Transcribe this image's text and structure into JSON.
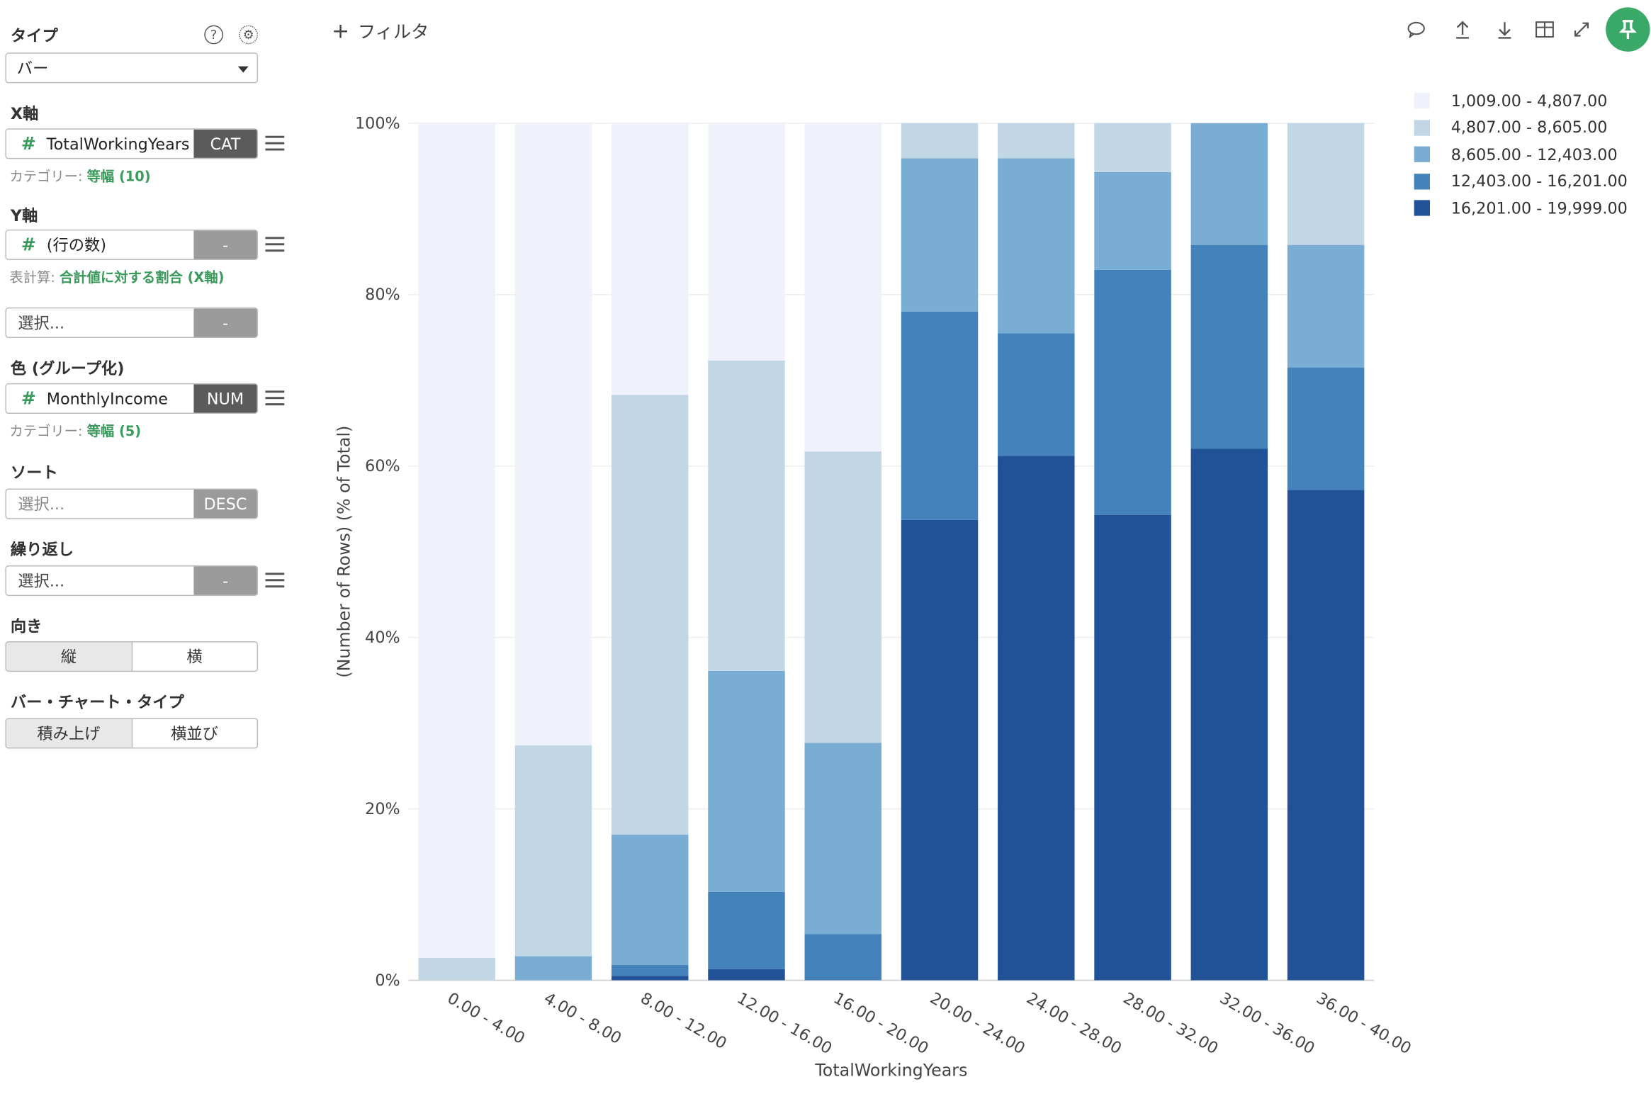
{
  "sidebar": {
    "type_label": "タイプ",
    "type_value": "バー",
    "x_label": "X軸",
    "x_field": "TotalWorkingYears",
    "x_tag": "CAT",
    "x_note_prefix": "カテゴリー: ",
    "x_note_value": "等幅 (10)",
    "y_label": "Y軸",
    "y_field": "(行の数)",
    "y_tag": "-",
    "y_note_prefix": "表計算: ",
    "y_note_value": "合計値に対する割合 (X軸)",
    "y2_placeholder": "選択...",
    "y2_tag": "-",
    "color_label": "色 (グループ化)",
    "color_field": "MonthlyIncome",
    "color_tag": "NUM",
    "color_note_prefix": "カテゴリー: ",
    "color_note_value": "等幅 (5)",
    "sort_label": "ソート",
    "sort_placeholder": "選択...",
    "sort_tag": "DESC",
    "repeat_label": "繰り返し",
    "repeat_placeholder": "選択...",
    "repeat_tag": "-",
    "orient_label": "向き",
    "orient_vertical": "縦",
    "orient_horizontal": "横",
    "bartype_label": "バー・チャート・タイプ",
    "bartype_stacked": "積み上げ",
    "bartype_side": "横並び"
  },
  "topbar": {
    "filter_label": "フィルタ"
  },
  "chart_data": {
    "type": "bar",
    "stacked": true,
    "categories": [
      "0.00 - 4.00",
      "4.00 - 8.00",
      "8.00 - 12.00",
      "12.00 - 16.00",
      "16.00 - 20.00",
      "20.00 - 24.00",
      "24.00 - 28.00",
      "28.00 - 32.00",
      "32.00 - 36.00",
      "36.00 - 40.00"
    ],
    "series": [
      {
        "name": "16,201.00 - 19,999.00",
        "color": "#215297",
        "values": [
          0,
          0,
          0.5,
          1.3,
          0,
          53.7,
          61.2,
          54.3,
          62.0,
          57.2
        ]
      },
      {
        "name": "12,403.00 - 16,201.00",
        "color": "#4482bb",
        "values": [
          0,
          0,
          1.3,
          9.0,
          5.4,
          24.3,
          14.3,
          28.6,
          23.8,
          14.3
        ]
      },
      {
        "name": "8,605.00 - 12,403.00",
        "color": "#7aadd3",
        "values": [
          0,
          2.8,
          15.2,
          25.8,
          22.3,
          17.9,
          20.4,
          11.4,
          14.2,
          14.3
        ]
      },
      {
        "name": "4,807.00 - 8,605.00",
        "color": "#c2d7e6",
        "values": [
          2.6,
          24.6,
          51.3,
          36.2,
          34.0,
          4.1,
          4.1,
          5.7,
          0,
          14.2
        ]
      },
      {
        "name": "1,009.00 - 4,807.00",
        "color": "#eff1fb",
        "values": [
          97.4,
          72.6,
          31.7,
          27.7,
          38.3,
          0,
          0,
          0,
          0,
          0
        ]
      }
    ],
    "legend_order": [
      4,
      3,
      2,
      1,
      0
    ],
    "xlabel": "TotalWorkingYears",
    "ylabel": "(Number of Rows) (% of Total)",
    "ylim": [
      0,
      100
    ],
    "yticks": [
      "0%",
      "20%",
      "40%",
      "60%",
      "80%",
      "100%"
    ],
    "grid": true,
    "legend_position": "top-right"
  }
}
